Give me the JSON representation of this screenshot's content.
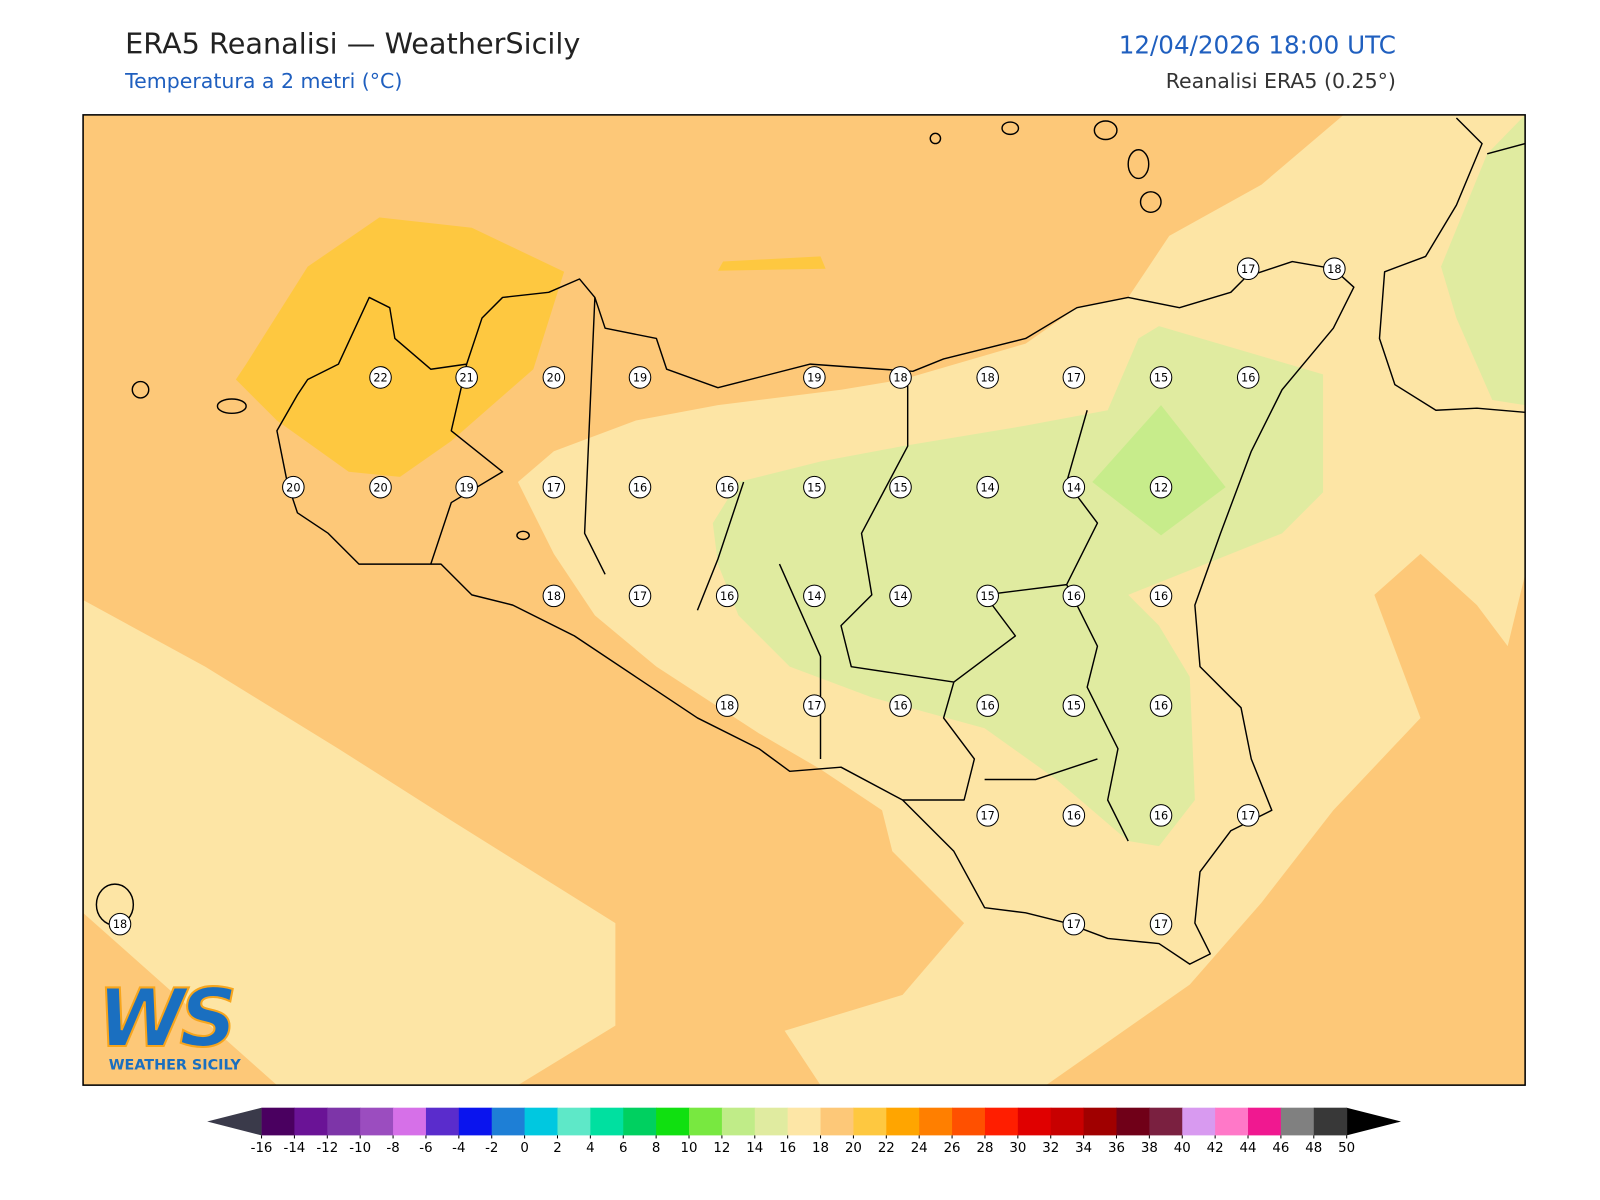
{
  "header": {
    "title": "ERA5 Reanalisi — WeatherSicily",
    "subtitle": "Temperatura a 2 metri (°C)",
    "datetime": "12/04/2026 18:00 UTC",
    "source": "Reanalisi ERA5 (0.25°)"
  },
  "grid_labels": [
    17,
    18,
    22,
    21,
    20,
    19,
    19,
    18,
    18,
    17,
    15,
    16,
    20,
    20,
    19,
    17,
    16,
    16,
    15,
    15,
    14,
    14,
    12,
    18,
    17,
    16,
    14,
    14,
    15,
    16,
    16,
    18,
    17,
    16,
    16,
    15,
    16,
    17,
    16,
    16,
    17,
    18,
    17,
    17
  ],
  "colorbar": {
    "ticks": [
      -16,
      -14,
      -12,
      -10,
      -8,
      -6,
      -4,
      -2,
      0,
      2,
      4,
      6,
      8,
      10,
      12,
      14,
      16,
      18,
      20,
      22,
      24,
      26,
      28,
      30,
      32,
      34,
      36,
      38,
      40,
      42,
      44,
      46,
      48,
      50
    ],
    "colors": [
      "#4a0060",
      "#6a1396",
      "#7d35a8",
      "#9b4dbf",
      "#d670e8",
      "#5a2ccc",
      "#0a14ee",
      "#1e7fd6",
      "#00c8e0",
      "#5ee8c8",
      "#00e0a0",
      "#00d060",
      "#10e010",
      "#78e840",
      "#c0ec88",
      "#e0eba0",
      "#fde6a6",
      "#fdc878",
      "#fec840",
      "#ffa500",
      "#ff7f00",
      "#ff5000",
      "#ff1e00",
      "#e00000",
      "#c80000",
      "#a00000",
      "#700018",
      "#7a2040",
      "#d89af0",
      "#ff78c8",
      "#f01890",
      "#808080",
      "#383838"
    ],
    "under_color": "#3a3a4a",
    "over_color": "#000000"
  },
  "logo": {
    "mark": "WS",
    "text": "WEATHER SICILY"
  }
}
